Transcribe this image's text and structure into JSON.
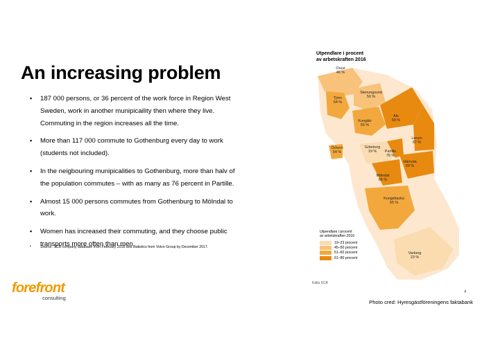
{
  "slide": {
    "title": "An increasing problem",
    "bullets": [
      "187 000 persons, or 36 percent of the work force in Region West Sweden, work in another munipicaility then where they live. Commuting in the region increases all the time.",
      "More than 117 000 commute to Gothenburg every day to work (students not included).",
      "In the neigbouring munipicalities to Gothenburg, more than halv of the population commutes – with as many as 76 percent in Partille.",
      "Almost 15 000 persons commutes from Gothenburg to Mölndal to work.",
      "Women has increased their commuting, and they choose public transports more often than men."
    ],
    "footnote": "Source: SCB company database from February 2018 and statistics from Volvo Group by December 2017.",
    "page_number": "4",
    "photo_credit": "Photo cred: Hyresgästföreningens faktabank"
  },
  "logo": {
    "main": "forefront",
    "sub": "consulting",
    "color": "#f29a00"
  },
  "map": {
    "title_line1": "Utpendlare i procent",
    "title_line2": "av arbetskraften 2016",
    "source": "Källa SCB",
    "legend": {
      "title_line1": "Utpendlare i procent",
      "title_line2": "av arbetskraften 2016",
      "items": [
        {
          "label": "19–23 procent",
          "color": "#fbdcb0"
        },
        {
          "label": "45–50 procent",
          "color": "#f8c27a"
        },
        {
          "label": "51–60 procent",
          "color": "#f3a83d"
        },
        {
          "label": "61–80 procent",
          "color": "#e88a10"
        }
      ]
    },
    "regions": [
      {
        "name": "Orust",
        "value": "46 %"
      },
      {
        "name": "Stenungsund",
        "value": "50 %"
      },
      {
        "name": "Tjörn",
        "value": "54 %"
      },
      {
        "name": "Ale",
        "value": "69 %"
      },
      {
        "name": "Kungälv",
        "value": "55 %"
      },
      {
        "name": "Lerum",
        "value": "67 %"
      },
      {
        "name": "Öckerö",
        "value": "54 %"
      },
      {
        "name": "Göteborg",
        "value": "19 %"
      },
      {
        "name": "Partille",
        "value": "76 %"
      },
      {
        "name": "Härryda",
        "value": "69 %"
      },
      {
        "name": "Mölndal",
        "value": "66 %"
      },
      {
        "name": "Kungsbacka",
        "value": "55 %"
      },
      {
        "name": "Varberg",
        "value": "23 %"
      }
    ]
  }
}
